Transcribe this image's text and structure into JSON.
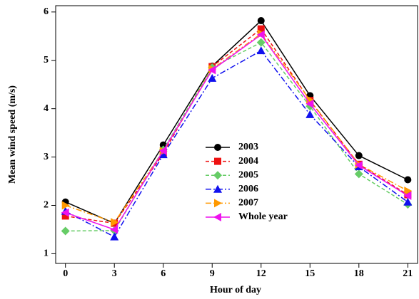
{
  "chart_data": {
    "type": "line",
    "x_label": "Hour of day",
    "y_label": "Mean wind speed (m/s)",
    "x": [
      0,
      3,
      6,
      9,
      12,
      15,
      18,
      21
    ],
    "xlim": [
      -0.6,
      21.6
    ],
    "xticks": [
      0,
      3,
      6,
      9,
      12,
      15,
      18,
      21
    ],
    "ylim": [
      0.8,
      6.13
    ],
    "yticks": [
      1,
      2,
      3,
      4,
      5,
      6
    ],
    "series": [
      {
        "name": "2003",
        "color": "#000000",
        "marker": "circle",
        "dash": "solid",
        "values": [
          2.07,
          1.63,
          3.25,
          4.88,
          5.82,
          4.27,
          3.03,
          2.53
        ]
      },
      {
        "name": "2004",
        "color": "#ee1111",
        "marker": "square",
        "dash": "dash",
        "values": [
          1.78,
          1.63,
          3.07,
          4.87,
          5.65,
          4.17,
          2.85,
          2.22
        ]
      },
      {
        "name": "2005",
        "color": "#66cc66",
        "marker": "diamond",
        "dash": "dash",
        "values": [
          1.47,
          1.48,
          3.15,
          4.85,
          5.37,
          4.05,
          2.65,
          2.02
        ]
      },
      {
        "name": "2006",
        "color": "#1111ee",
        "marker": "triangle-up",
        "dash": "dashdot",
        "values": [
          1.88,
          1.35,
          3.05,
          4.63,
          5.2,
          3.88,
          2.8,
          2.07
        ]
      },
      {
        "name": "2007",
        "color": "#ff9900",
        "marker": "triangle-right",
        "dash": "dashdot",
        "values": [
          2.0,
          1.65,
          3.12,
          4.82,
          5.55,
          4.18,
          2.85,
          2.3
        ]
      },
      {
        "name": "Whole year",
        "color": "#ee11ee",
        "marker": "triangle-left",
        "dash": "solid",
        "values": [
          1.85,
          1.5,
          3.13,
          4.8,
          5.53,
          4.1,
          2.83,
          2.2
        ]
      }
    ]
  }
}
